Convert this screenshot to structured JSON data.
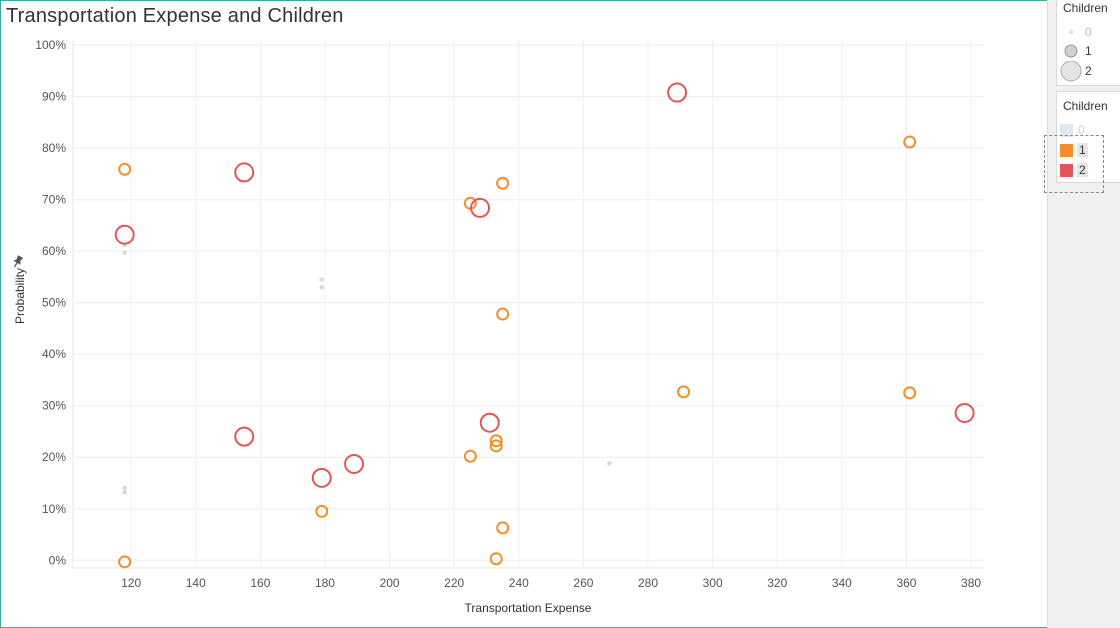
{
  "title": "Transportation Expense and Children",
  "size_legend": {
    "title": "Children",
    "items": [
      {
        "label": "0",
        "muted": true
      },
      {
        "label": "1",
        "muted": false
      },
      {
        "label": "2",
        "muted": false
      }
    ]
  },
  "color_legend": {
    "title": "Children",
    "items": [
      {
        "label": "0",
        "color": "#c9d7e6",
        "muted": true
      },
      {
        "label": "1",
        "color": "#f28e2b",
        "muted": false
      },
      {
        "label": "2",
        "color": "#e15759",
        "muted": false
      }
    ]
  },
  "chart_data": {
    "type": "scatter",
    "title": "Transportation Expense and Children",
    "xlabel": "Transportation Expense",
    "ylabel": "Probability",
    "xlim": [
      102,
      384
    ],
    "ylim": [
      -1.5,
      101
    ],
    "x_ticks": [
      120,
      140,
      160,
      180,
      200,
      220,
      240,
      260,
      280,
      300,
      320,
      340,
      360,
      380
    ],
    "y_ticks": [
      0,
      10,
      20,
      30,
      40,
      50,
      60,
      70,
      80,
      90,
      100
    ],
    "y_tick_labels": [
      "0%",
      "10%",
      "20%",
      "30%",
      "40%",
      "50%",
      "60%",
      "70%",
      "80%",
      "90%",
      "100%"
    ],
    "grid": true,
    "series": [
      {
        "name": "0",
        "color": "#d9d9d9",
        "points": [
          {
            "x": 118,
            "y": 61.2
          },
          {
            "x": 118,
            "y": 59.7
          },
          {
            "x": 179,
            "y": 54.5
          },
          {
            "x": 179,
            "y": 53.0
          },
          {
            "x": 118,
            "y": 14.1
          },
          {
            "x": 118,
            "y": 13.2
          },
          {
            "x": 268,
            "y": 18.8
          }
        ]
      },
      {
        "name": "1",
        "color": "#f28e2b",
        "points": [
          {
            "x": 118,
            "y": 75.9
          },
          {
            "x": 225,
            "y": 69.3
          },
          {
            "x": 235,
            "y": 73.2
          },
          {
            "x": 235,
            "y": 47.8
          },
          {
            "x": 291,
            "y": 32.7
          },
          {
            "x": 361,
            "y": 81.2
          },
          {
            "x": 361,
            "y": 32.5
          },
          {
            "x": 225,
            "y": 20.2
          },
          {
            "x": 233,
            "y": 23.2
          },
          {
            "x": 233,
            "y": 22.2
          },
          {
            "x": 179,
            "y": 9.5
          },
          {
            "x": 235,
            "y": 6.3
          },
          {
            "x": 118,
            "y": -0.3
          },
          {
            "x": 233,
            "y": 0.3
          }
        ]
      },
      {
        "name": "2",
        "color": "#e15759",
        "points": [
          {
            "x": 289,
            "y": 90.8
          },
          {
            "x": 155,
            "y": 75.3
          },
          {
            "x": 118,
            "y": 63.2
          },
          {
            "x": 228,
            "y": 68.4
          },
          {
            "x": 155,
            "y": 24.0
          },
          {
            "x": 231,
            "y": 26.7
          },
          {
            "x": 189,
            "y": 18.7
          },
          {
            "x": 179,
            "y": 16.0
          },
          {
            "x": 378,
            "y": 28.6
          }
        ]
      }
    ]
  }
}
